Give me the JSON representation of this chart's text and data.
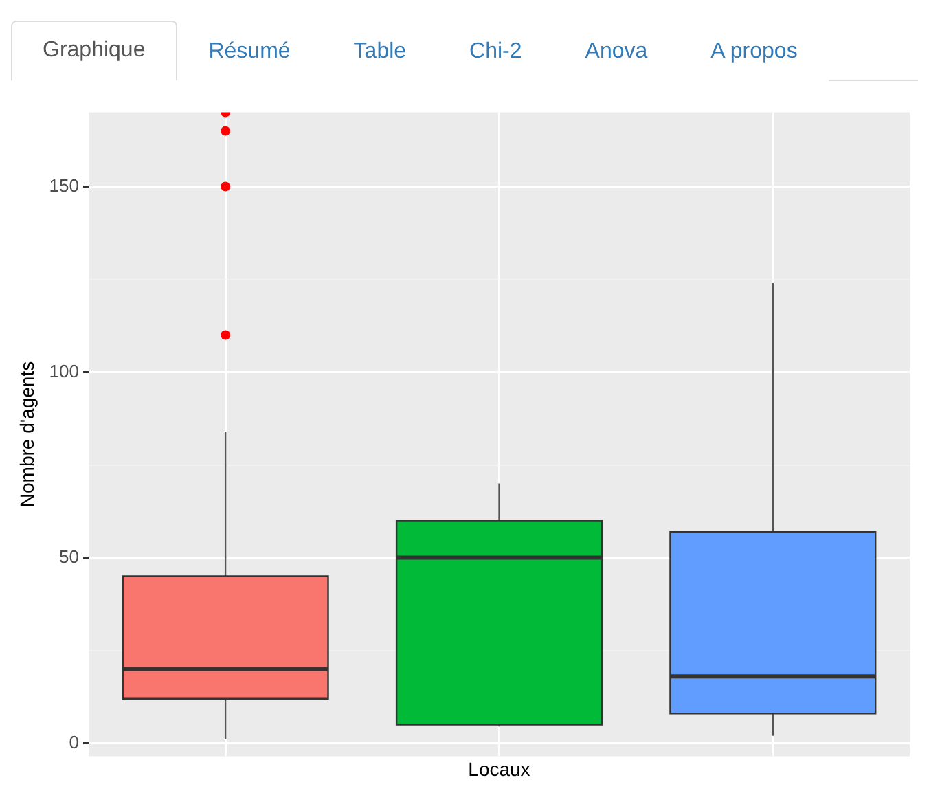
{
  "chart_data": {
    "type": "box",
    "xlabel": "Locaux",
    "ylabel": "Nombre d'agents",
    "annotations": [
      "Graphique",
      "Résumé",
      "Table",
      "Chi-2",
      "Anova",
      "A propos"
    ],
    "categories": [
      null,
      null,
      null
    ],
    "colors": [
      "#f8766d",
      "#00ba38",
      "#619cff"
    ],
    "boxes": [
      {
        "low": 1,
        "q1": 12,
        "median": 20,
        "q3": 45,
        "high": 84,
        "outliers": [
          110,
          150,
          165,
          170
        ]
      },
      {
        "low": 4.5,
        "q1": 5,
        "median": 50,
        "q3": 60,
        "high": 70
      },
      {
        "low": 2,
        "q1": 8,
        "median": 18,
        "q3": 57,
        "high": 124
      }
    ],
    "ylim": [
      -3.5,
      170
    ],
    "yticks": [
      0,
      {
        "value": 25,
        "label": null
      },
      50,
      {
        "value": 75,
        "label": null
      },
      100,
      {
        "value": 125,
        "label": null
      },
      150
    ],
    "grid": true,
    "tick_labels": "y",
    "legend": false
  }
}
